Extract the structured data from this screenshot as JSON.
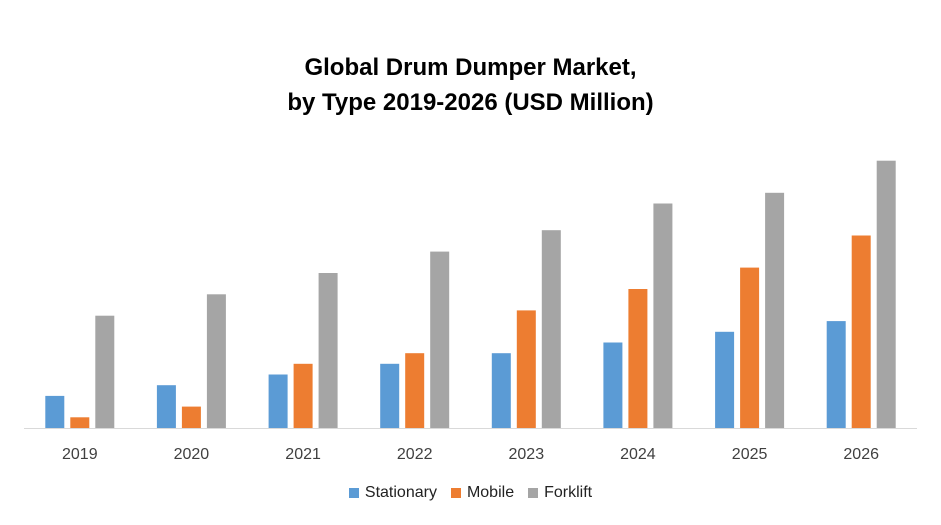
{
  "chart_data": {
    "type": "bar",
    "title_line1": "Global Drum Dumper Market,",
    "title_line2": "by Type 2019-2026 (USD Million)",
    "categories": [
      "2019",
      "2020",
      "2021",
      "2022",
      "2023",
      "2024",
      "2025",
      "2026"
    ],
    "series": [
      {
        "name": "Stationary",
        "color": "#5B9BD5",
        "values": [
          30,
          40,
          50,
          60,
          70,
          80,
          90,
          100
        ]
      },
      {
        "name": "Mobile",
        "color": "#ED7D31",
        "values": [
          10,
          20,
          60,
          70,
          110,
          130,
          150,
          180
        ]
      },
      {
        "name": "Forklift",
        "color": "#A5A5A5",
        "values": [
          105,
          125,
          145,
          165,
          185,
          210,
          220,
          250
        ]
      }
    ],
    "ylim": [
      0,
      260
    ],
    "grid": false,
    "legend_position": "bottom"
  }
}
